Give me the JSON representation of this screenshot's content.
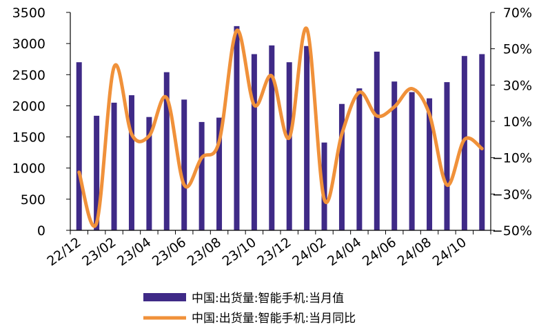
{
  "chart_data": {
    "type": "bar+line",
    "categories": [
      "22/12",
      "23/01",
      "23/02",
      "23/03",
      "23/04",
      "23/05",
      "23/06",
      "23/07",
      "23/08",
      "23/09",
      "23/10",
      "23/11",
      "23/12",
      "24/01",
      "24/02",
      "24/03",
      "24/04",
      "24/05",
      "24/06",
      "24/07",
      "24/08",
      "24/09",
      "24/10",
      "24/11"
    ],
    "x_tick_labels": [
      "22/12",
      "23/02",
      "23/04",
      "23/06",
      "23/08",
      "23/10",
      "23/12",
      "24/02",
      "24/04",
      "24/06",
      "24/08",
      "24/10"
    ],
    "series": [
      {
        "name": "中国:出货量:智能手机:当月值",
        "type": "bar",
        "axis": "left",
        "color": "#3f2a87",
        "values": [
          2700,
          1840,
          2050,
          2170,
          1820,
          2540,
          2100,
          1740,
          1810,
          3280,
          2830,
          2970,
          2700,
          2960,
          1410,
          2030,
          2280,
          2870,
          2390,
          2220,
          2120,
          2380,
          2800,
          2830
        ]
      },
      {
        "name": "中国:出货量:智能手机:当月同比",
        "type": "line",
        "axis": "right",
        "color": "#f0913a",
        "values": [
          -18,
          -46,
          40,
          3,
          2,
          23,
          -25,
          -10,
          -1,
          60,
          19,
          35,
          1,
          61,
          -33,
          3,
          26,
          13,
          18,
          28,
          14,
          -25,
          0,
          -5
        ]
      }
    ],
    "y_left": {
      "min": 0,
      "max": 3500,
      "ticks": [
        0,
        500,
        1000,
        1500,
        2000,
        2500,
        3000,
        3500
      ]
    },
    "y_right": {
      "min": -50,
      "max": 70,
      "ticks": [
        "70%",
        "50%",
        "30%",
        "10%",
        "−10%",
        "−30%",
        "−50%"
      ],
      "tick_values": [
        70,
        50,
        30,
        10,
        -10,
        -30,
        -50
      ]
    },
    "grid": false,
    "legend_position": "bottom"
  }
}
